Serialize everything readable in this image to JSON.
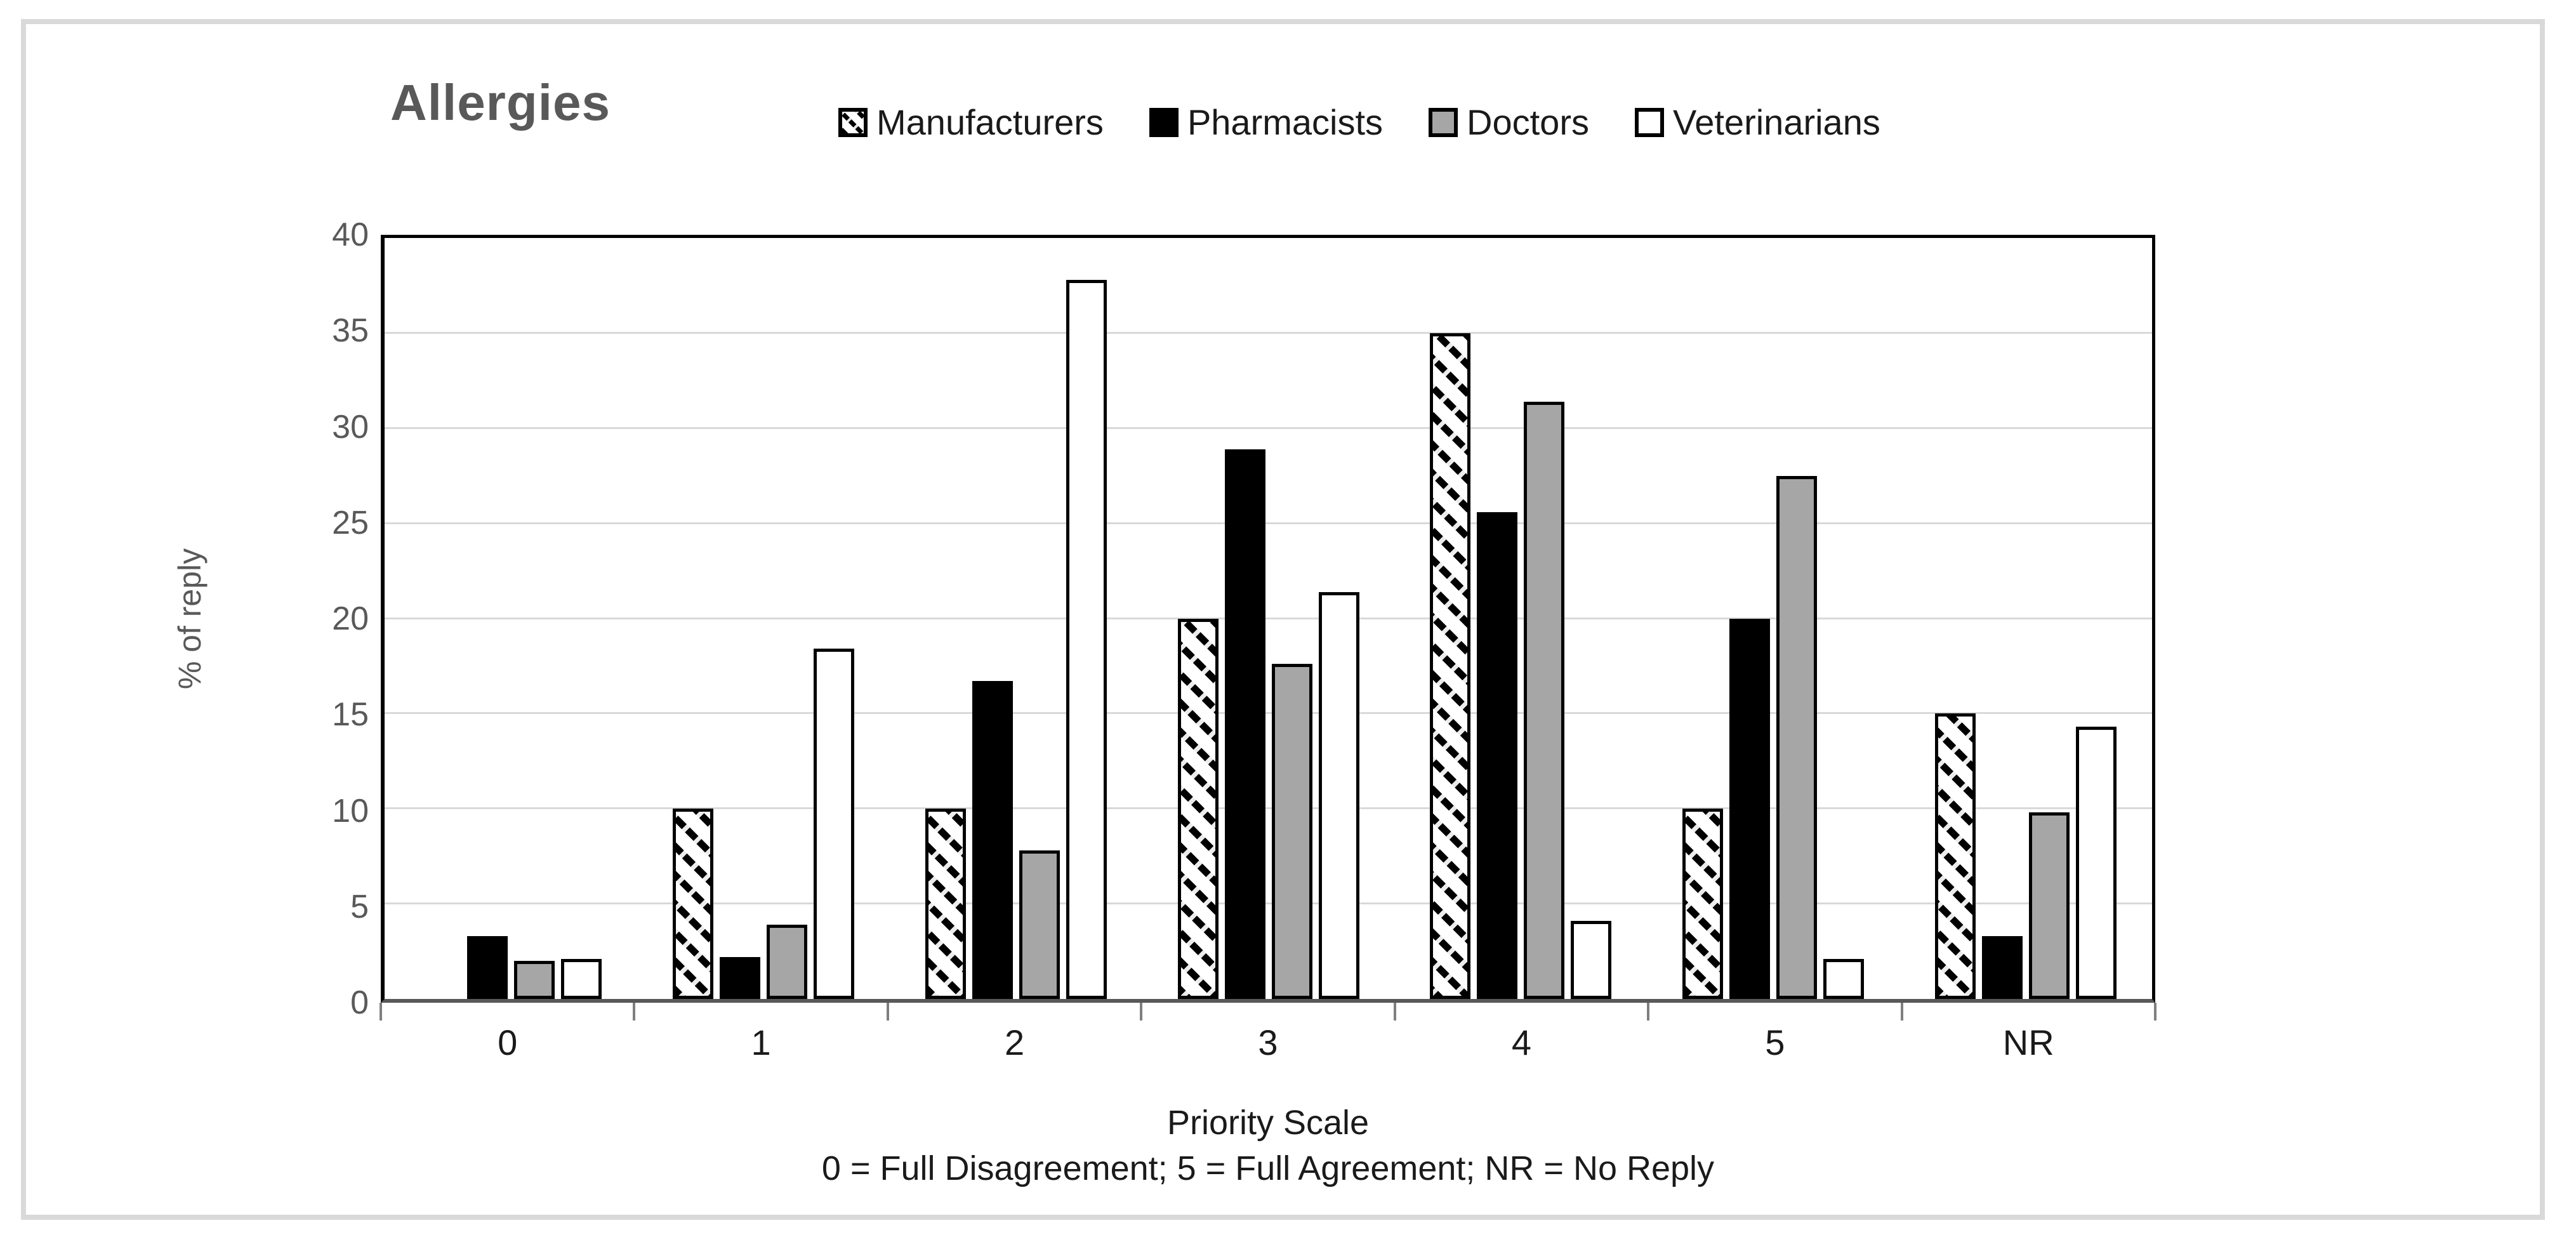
{
  "chart_data": {
    "type": "bar",
    "title": "Allergies",
    "categories": [
      "0",
      "1",
      "2",
      "3",
      "4",
      "5",
      "NR"
    ],
    "series": [
      {
        "name": "Manufacturers",
        "fill": "hatch",
        "values": [
          0,
          10,
          10,
          20,
          35,
          10,
          15
        ]
      },
      {
        "name": "Pharmacists",
        "fill": "#000000",
        "values": [
          3.3,
          2.2,
          16.7,
          28.9,
          25.6,
          20,
          3.3
        ]
      },
      {
        "name": "Doctors",
        "fill": "#a6a6a6",
        "values": [
          2.0,
          3.9,
          7.8,
          17.6,
          31.4,
          27.5,
          9.8
        ]
      },
      {
        "name": "Veterinarians",
        "fill": "#ffffff",
        "values": [
          2.1,
          18.4,
          37.8,
          21.4,
          4.1,
          2.1,
          14.3
        ]
      }
    ],
    "xlabel": "Priority Scale",
    "footnote": "0 = Full Disagreement; 5 = Full Agreement; NR = No Reply",
    "ylabel": "% of reply",
    "ylim": [
      0,
      40
    ],
    "yticks": [
      "0",
      "5",
      "10",
      "15",
      "20",
      "25",
      "30",
      "35",
      "40"
    ],
    "grid": true,
    "legend_position": "top-center",
    "colors": {
      "doctors_fill": "#a6a6a6",
      "title_text": "#595959",
      "axis_text": "#1a1a1a",
      "gridline": "#d9d9d9",
      "figure_border": "#d9d9d9",
      "plot_border": "#000000"
    }
  }
}
